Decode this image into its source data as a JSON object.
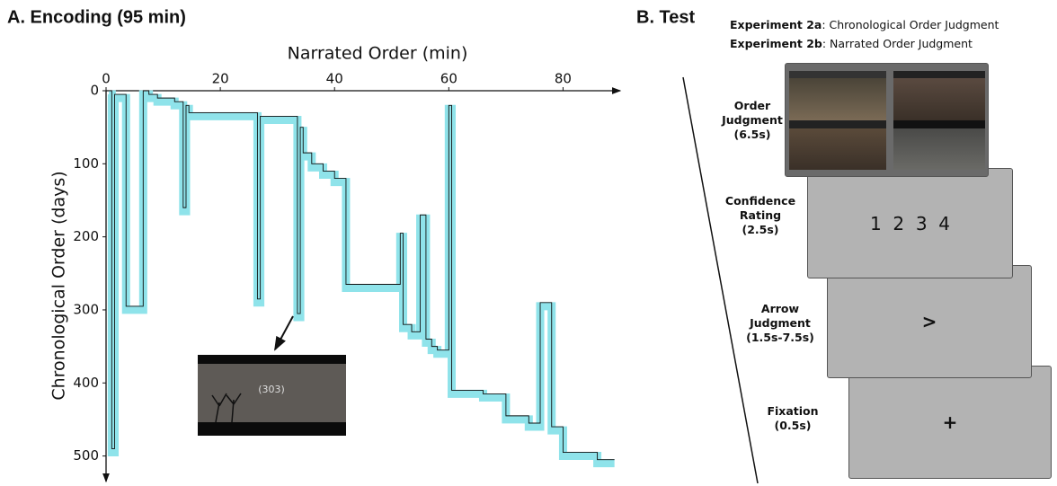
{
  "chart_data": {
    "type": "line",
    "title": "A. Encoding (95 min)",
    "x_label": "Narrated Order (min)",
    "y_label": "Chronological Order (days)",
    "annotation": "(303)",
    "color": "#111111",
    "band_color": "#8fe3ea",
    "x": [
      0.5,
      1,
      1,
      1.5,
      1.5,
      3.5,
      3.5,
      6.5,
      6.5,
      7.5,
      7.5,
      9,
      9,
      12,
      12,
      13.5,
      13.5,
      14,
      14,
      14.5,
      14.5,
      26.5,
      26.5,
      27,
      27,
      33.5,
      33.5,
      34,
      34,
      34.5,
      34.5,
      36,
      36,
      38,
      38,
      40,
      40,
      42,
      42,
      51.5,
      51.5,
      52,
      52,
      53.5,
      53.5,
      55,
      55,
      56,
      56,
      57,
      57,
      58,
      58,
      60,
      60,
      60.5,
      60.5,
      66,
      66,
      70,
      70,
      74,
      74,
      76,
      76,
      78,
      78,
      80,
      80,
      86,
      86,
      89
    ],
    "values": [
      0,
      0,
      490,
      490,
      5,
      5,
      295,
      295,
      0,
      0,
      5,
      5,
      10,
      10,
      15,
      15,
      160,
      160,
      20,
      20,
      30,
      30,
      285,
      285,
      35,
      35,
      305,
      305,
      50,
      50,
      85,
      85,
      100,
      100,
      110,
      110,
      120,
      120,
      265,
      265,
      195,
      195,
      320,
      320,
      330,
      330,
      170,
      170,
      340,
      340,
      350,
      350,
      355,
      355,
      20,
      20,
      410,
      410,
      415,
      415,
      445,
      445,
      455,
      455,
      290,
      290,
      460,
      460,
      495,
      495,
      505,
      505
    ],
    "xlim": [
      0,
      90
    ],
    "ylim": [
      0,
      530
    ],
    "xticks": [
      0,
      20,
      40,
      60,
      80
    ],
    "yticks": [
      0,
      100,
      200,
      300,
      400,
      500
    ]
  },
  "panel_b": {
    "title": "B. Test",
    "experiments": [
      {
        "name": "Experiment 2a",
        "text": ": Chronological Order Judgment"
      },
      {
        "name": "Experiment 2b",
        "text": ": Narrated Order Judgment"
      }
    ],
    "stages": [
      {
        "label": "Order Judgment",
        "duration": "(6.5s)"
      },
      {
        "label": "Confidence Rating",
        "duration": "(2.5s)",
        "screen": "1  2  3  4"
      },
      {
        "label": "Arrow Judgment",
        "duration": "(1.5s-7.5s)",
        "screen": ">"
      },
      {
        "label": "Fixation",
        "duration": "(0.5s)",
        "screen": "+"
      }
    ]
  }
}
